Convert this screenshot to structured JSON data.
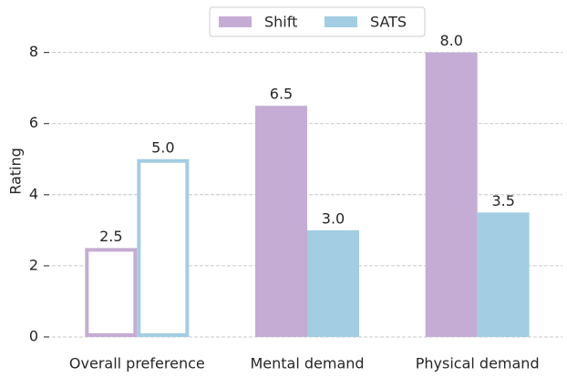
{
  "chart_data": {
    "type": "bar",
    "ylabel": "Rating",
    "categories": [
      "Overall preference",
      "Mental demand",
      "Physical demand"
    ],
    "series": [
      {
        "name": "Shift",
        "color": "#c5acd4",
        "values": [
          2.5,
          6.5,
          8.0
        ],
        "value_labels": [
          "2.5",
          "6.5",
          "8.0"
        ]
      },
      {
        "name": "SATS",
        "color": "#a3cde3",
        "values": [
          5.0,
          3.0,
          3.5
        ],
        "value_labels": [
          "5.0",
          "3.0",
          "3.5"
        ]
      }
    ],
    "hollow_categories": [
      0
    ],
    "ylim": [
      0,
      8.4
    ],
    "yticks": [
      0,
      2,
      4,
      6,
      8
    ],
    "grid": true,
    "legend": "upper center"
  }
}
